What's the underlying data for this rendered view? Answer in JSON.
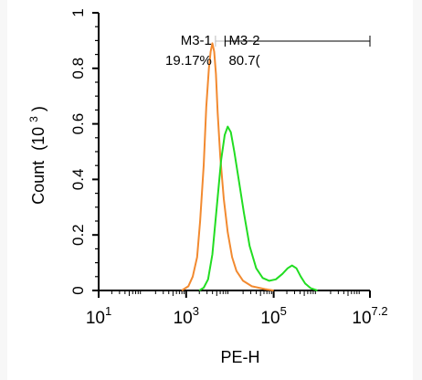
{
  "chart_data": {
    "type": "line",
    "xlabel": "PE-H",
    "ylabel": "Count (10^3)",
    "ylabel_main": "Count",
    "ylabel_unit": "(10",
    "ylabel_exp": "3",
    "ylabel_close": ")",
    "x_scale": "log",
    "xlim": [
      1,
      7.2
    ],
    "ylim": [
      0,
      1
    ],
    "x_ticks": [
      {
        "value": 1,
        "base": "10",
        "exp": "1"
      },
      {
        "value": 3,
        "base": "10",
        "exp": "3"
      },
      {
        "value": 5,
        "base": "10",
        "exp": "5"
      },
      {
        "value": 7.2,
        "base": "10",
        "exp": "7.2"
      }
    ],
    "y_ticks": [
      {
        "value": 0,
        "label": "0"
      },
      {
        "value": 0.2,
        "label": "0.2"
      },
      {
        "value": 0.4,
        "label": "0.4"
      },
      {
        "value": 0.6,
        "label": "0.6"
      },
      {
        "value": 0.8,
        "label": "0.8"
      },
      {
        "value": 1,
        "label": "1"
      }
    ],
    "grid": false,
    "series": [
      {
        "color": "#f28a30",
        "points": [
          [
            2.9,
            0.0
          ],
          [
            3.05,
            0.015
          ],
          [
            3.15,
            0.05
          ],
          [
            3.25,
            0.12
          ],
          [
            3.32,
            0.25
          ],
          [
            3.4,
            0.45
          ],
          [
            3.46,
            0.66
          ],
          [
            3.52,
            0.8
          ],
          [
            3.56,
            0.86
          ],
          [
            3.6,
            0.89
          ],
          [
            3.64,
            0.86
          ],
          [
            3.68,
            0.78
          ],
          [
            3.72,
            0.64
          ],
          [
            3.78,
            0.48
          ],
          [
            3.86,
            0.33
          ],
          [
            3.95,
            0.21
          ],
          [
            4.05,
            0.12
          ],
          [
            4.15,
            0.07
          ],
          [
            4.3,
            0.035
          ],
          [
            4.5,
            0.015
          ],
          [
            4.8,
            0.005
          ],
          [
            5.0,
            0.0
          ]
        ]
      },
      {
        "color": "#22dd22",
        "points": [
          [
            3.3,
            0.0
          ],
          [
            3.4,
            0.01
          ],
          [
            3.5,
            0.04
          ],
          [
            3.6,
            0.13
          ],
          [
            3.7,
            0.3
          ],
          [
            3.8,
            0.47
          ],
          [
            3.88,
            0.56
          ],
          [
            3.95,
            0.59
          ],
          [
            4.02,
            0.57
          ],
          [
            4.1,
            0.5
          ],
          [
            4.2,
            0.4
          ],
          [
            4.32,
            0.28
          ],
          [
            4.45,
            0.16
          ],
          [
            4.6,
            0.08
          ],
          [
            4.75,
            0.045
          ],
          [
            4.9,
            0.035
          ],
          [
            5.05,
            0.04
          ],
          [
            5.2,
            0.06
          ],
          [
            5.32,
            0.08
          ],
          [
            5.42,
            0.09
          ],
          [
            5.52,
            0.08
          ],
          [
            5.62,
            0.05
          ],
          [
            5.72,
            0.025
          ],
          [
            5.85,
            0.008
          ],
          [
            6.0,
            0.0
          ]
        ]
      }
    ],
    "gates": [
      {
        "name": "M3-1",
        "percent": "19.17%",
        "from": 3.67,
        "to": 3.89
      },
      {
        "name": "M3-2",
        "percent": "80.7(",
        "from": 3.89,
        "to": 7.2
      }
    ]
  }
}
